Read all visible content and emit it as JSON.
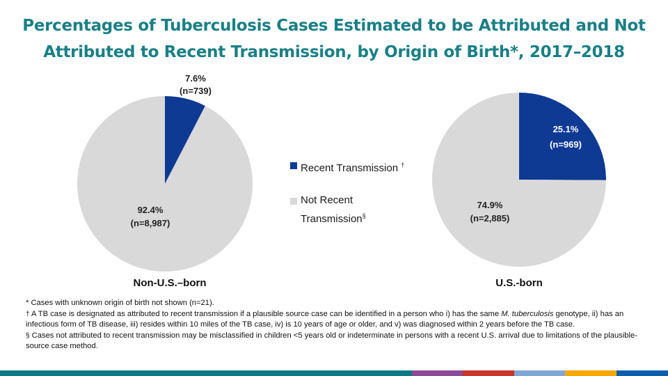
{
  "title_line1": "Percentages of Tuberculosis Cases Estimated to be Attributed and Not",
  "title_line2": "Attributed to Recent Transmission, by Origin of Birth*, 2017–2018",
  "colors": {
    "title": "#1a7f86",
    "recent": "#0f3a94",
    "not_recent": "#d9d9d9"
  },
  "legend": {
    "recent_label": "Recent Transmission",
    "recent_mark": "†",
    "not_recent_label": "Not Recent\nTransmission",
    "not_recent_mark": "§"
  },
  "chart_data": [
    {
      "type": "pie",
      "caption": "Non-U.S.–born",
      "slices": [
        {
          "category": "Recent Transmission",
          "percent": 7.6,
          "pct_text": "7.6%",
          "n_text": "(n=739)"
        },
        {
          "category": "Not Recent Transmission",
          "percent": 92.4,
          "pct_text": "92.4%",
          "n_text": "(n=8,987)"
        }
      ]
    },
    {
      "type": "pie",
      "caption": "U.S.-born",
      "slices": [
        {
          "category": "Recent Transmission",
          "percent": 25.1,
          "pct_text": "25.1%",
          "n_text": "(n=969)"
        },
        {
          "category": "Not Recent Transmission",
          "percent": 74.9,
          "pct_text": "74.9%",
          "n_text": "(n=2,885)"
        }
      ]
    }
  ],
  "footnotes": {
    "f1": "* Cases with unknown origin of birth not shown (n=21).",
    "f2_sym": "†",
    "f2_a": " A TB case is designated as attributed to recent transmission  if a plausible source case can be identified  in a person  who i) has the same ",
    "f2_em": "M. tuberculosis",
    "f2_b": " genotype, ii) has an infectious form of TB disease, iii) resides within 10 miles of the TB case, iv) is 10 years of age or older, and v) was diagnosed  within 2 years before the TB case.",
    "f3_sym": "§",
    "f3": " Cases not attributed to recent transmission  may be misclassified  in children <5 years old or indeterminate in persons  with a recent U.S. arrival due to limitations of the plausible-source  case method."
  },
  "bottom_bar_colors": [
    "#0d7a86",
    "#8e4a97",
    "#c8352b",
    "#7fa7d6",
    "#f5a800",
    "#0b5fae"
  ]
}
